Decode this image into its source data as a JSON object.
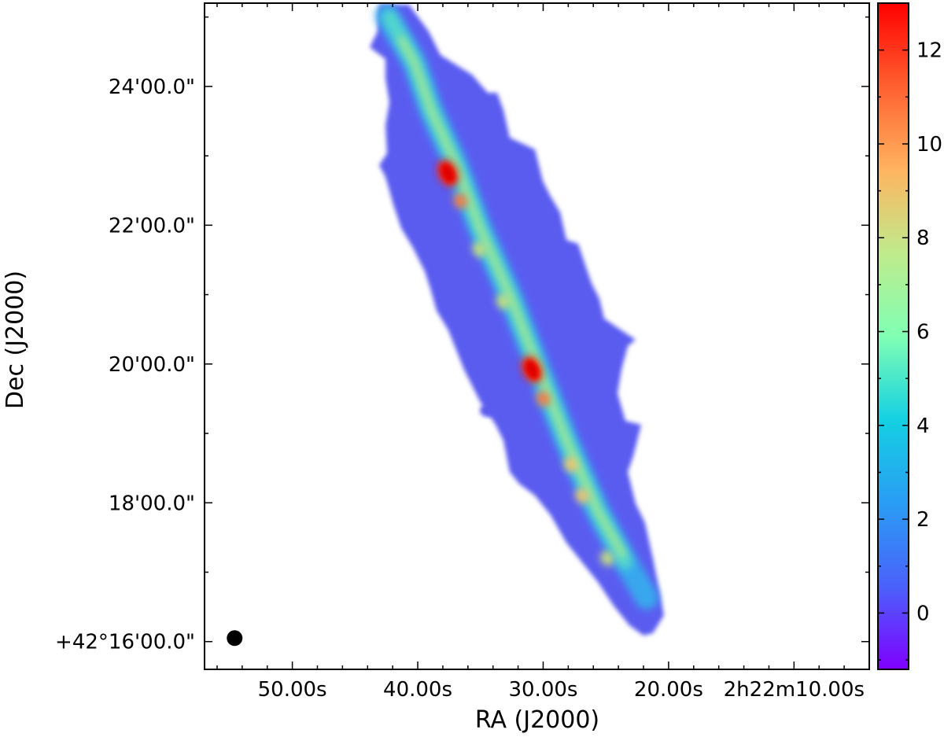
{
  "chart_data": {
    "type": "heatmap",
    "title": "",
    "xlabel": "RA (J2000)",
    "ylabel": "Dec (J2000)",
    "x_ticks": [
      "50.00s",
      "40.00s",
      "30.00s",
      "20.00s",
      "2h22m10.00s"
    ],
    "y_ticks": [
      "+42°16'00.0\"",
      "18'00.0\"",
      "20'00.0\"",
      "22'00.0\"",
      "24'00.0\""
    ],
    "x_tick_seconds": [
      50,
      40,
      30,
      20,
      10
    ],
    "y_tick_arcmin": [
      16,
      18,
      20,
      22,
      24
    ],
    "x_range_seconds": [
      57,
      4
    ],
    "y_range_arcmin": [
      15.6,
      25.2
    ],
    "colorbar": {
      "colormap": "rainbow",
      "ticks": [
        "0",
        "2",
        "4",
        "6",
        "8",
        "10",
        "12"
      ],
      "tick_values": [
        0,
        2,
        4,
        6,
        8,
        10,
        12
      ],
      "range": [
        -1.2,
        13.0
      ]
    },
    "ridge": {
      "description": "edge-on galaxy disk ridge",
      "start": {
        "ra_s": 42.0,
        "dec_arcmin": 24.95
      },
      "end": {
        "ra_s": 24.5,
        "dec_arcmin": 17.0
      },
      "peak_values": [
        {
          "ra_s": 37.6,
          "dec_arcmin": 22.75,
          "value": 13.0
        },
        {
          "ra_s": 36.6,
          "dec_arcmin": 22.35,
          "value": 10.5
        },
        {
          "ra_s": 35.1,
          "dec_arcmin": 21.65,
          "value": 8.8
        },
        {
          "ra_s": 33.2,
          "dec_arcmin": 20.9,
          "value": 8.2
        },
        {
          "ra_s": 30.9,
          "dec_arcmin": 19.92,
          "value": 13.0
        },
        {
          "ra_s": 30.0,
          "dec_arcmin": 19.5,
          "value": 10.5
        },
        {
          "ra_s": 27.8,
          "dec_arcmin": 18.55,
          "value": 9.5
        },
        {
          "ra_s": 26.9,
          "dec_arcmin": 18.1,
          "value": 9.5
        },
        {
          "ra_s": 24.9,
          "dec_arcmin": 17.2,
          "value": 8.5
        }
      ]
    },
    "beam": {
      "ra_s": 54.6,
      "dec_arcmin": 16.05
    },
    "colors": {
      "background_emission": "#5a5cf0",
      "ridge_low": "#4fd8d0",
      "ridge_mid": "#b8e87a",
      "peak": "#ff1a00"
    }
  }
}
